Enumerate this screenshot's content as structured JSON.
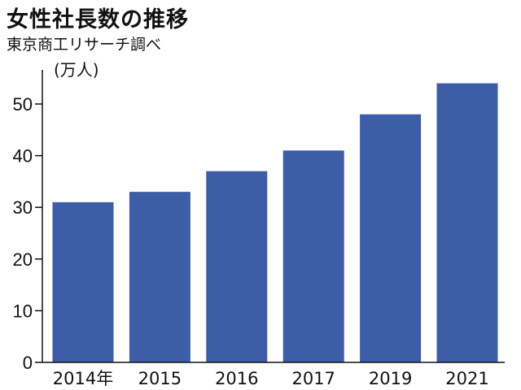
{
  "header": {
    "title": "女性社長数の推移",
    "source": "東京商工リサーチ調べ",
    "unit": "(万人)"
  },
  "chart_data": {
    "type": "bar",
    "title": "女性社長数の推移",
    "subtitle": "東京商工リサーチ調べ",
    "xlabel": "",
    "ylabel": "(万人)",
    "categories": [
      "2014年",
      "2015",
      "2016",
      "2017",
      "2019",
      "2021"
    ],
    "values": [
      31,
      33,
      37,
      41,
      48,
      54
    ],
    "ylim": [
      0,
      55
    ],
    "yticks": [
      0,
      10,
      20,
      30,
      40,
      50
    ],
    "grid": false,
    "legend": "none",
    "bar_color": "#3d5ea6"
  }
}
